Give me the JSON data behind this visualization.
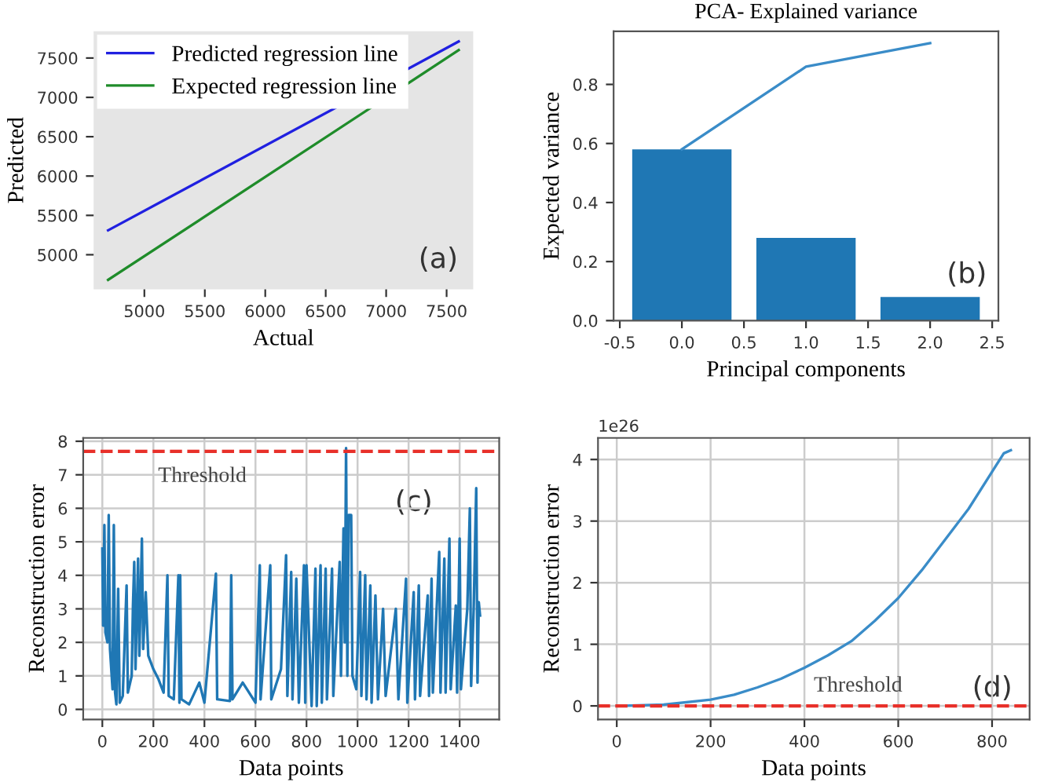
{
  "chart_data": [
    {
      "type": "line",
      "xlabel": "Actual",
      "ylabel": "Predicted",
      "xlim": [
        4580,
        7720
      ],
      "ylim": [
        4560,
        7840
      ],
      "xticks": [
        5000,
        5500,
        6000,
        6500,
        7000,
        7500
      ],
      "yticks": [
        5000,
        5500,
        6000,
        6500,
        7000,
        7500
      ],
      "grid": false,
      "legend": "top left",
      "annotations": [
        "(a)"
      ],
      "series": [
        {
          "name": "Predicted regression line",
          "color": "#2020e0",
          "x": [
            4700,
            7600
          ],
          "values": [
            5310,
            7710
          ]
        },
        {
          "name": "Expected regression line",
          "color": "#1f8c2a",
          "x": [
            4700,
            7600
          ],
          "values": [
            4680,
            7600
          ]
        }
      ]
    },
    {
      "type": "bar",
      "title": "PCA- Explained variance",
      "xlabel": "Principal components",
      "ylabel": "Expected variance",
      "xlim": [
        -0.55,
        2.55
      ],
      "ylim": [
        0,
        0.98
      ],
      "xticks": [
        -0.5,
        {
          "value": 0,
          "label": "0.0"
        },
        0.5,
        {
          "value": 1,
          "label": "1.0"
        },
        1.5,
        {
          "value": 2,
          "label": "2.0"
        },
        2.5
      ],
      "yticks": [
        {
          "value": 0,
          "label": "0.0"
        },
        0.2,
        0.4,
        0.6,
        0.8
      ],
      "grid": false,
      "annotations": [
        "(b)"
      ],
      "series": [
        {
          "type": "bar",
          "color": "#1f77b4",
          "x": [
            0,
            1,
            2
          ],
          "values": [
            0.58,
            0.28,
            0.08
          ]
        },
        {
          "type": "line",
          "color": "#3a8cc8",
          "x": [
            0,
            1,
            2
          ],
          "values": [
            0.58,
            0.86,
            0.94
          ]
        }
      ]
    },
    {
      "type": "line",
      "xlabel": "Data points",
      "ylabel": "Reconstruction error",
      "xlim": [
        -75,
        1555
      ],
      "ylim": [
        -0.3,
        8.1
      ],
      "xticks": [
        0,
        200,
        400,
        600,
        800,
        1000,
        1200,
        1400
      ],
      "yticks": [
        0,
        1,
        2,
        3,
        4,
        5,
        6,
        7,
        8
      ],
      "grid": true,
      "annotations": [
        "(c)"
      ],
      "ref_lines": [
        {
          "axis": "y",
          "value": 7.7,
          "label": "Threshold",
          "color": "#e8302a",
          "line_style": "dashed"
        }
      ],
      "series": [
        {
          "color": "#1f77b4",
          "x": [
            0,
            3,
            8,
            12,
            20,
            25,
            30,
            40,
            45,
            50,
            55,
            62,
            68,
            80,
            95,
            100,
            115,
            120,
            125,
            130,
            140,
            145,
            155,
            160,
            170,
            180,
            200,
            220,
            240,
            255,
            260,
            280,
            298,
            302,
            305,
            310,
            340,
            380,
            400,
            445,
            450,
            500,
            505,
            510,
            550,
            600,
            617,
            620,
            658,
            662,
            700,
            720,
            725,
            740,
            745,
            760,
            770,
            790,
            795,
            800,
            820,
            835,
            840,
            855,
            860,
            875,
            880,
            900,
            905,
            930,
            935,
            945,
            950,
            955,
            960,
            965,
            975,
            980,
            995,
            1010,
            1015,
            1030,
            1035,
            1050,
            1055,
            1070,
            1080,
            1100,
            1110,
            1150,
            1160,
            1190,
            1195,
            1220,
            1225,
            1240,
            1245,
            1275,
            1280,
            1290,
            1295,
            1320,
            1325,
            1340,
            1345,
            1360,
            1365,
            1385,
            1390,
            1400,
            1405,
            1430,
            1440,
            1445,
            1455,
            1465,
            1470,
            1475,
            1480
          ],
          "values": [
            4.8,
            2.5,
            5.5,
            2.3,
            2.0,
            5.8,
            1.8,
            0.6,
            5.5,
            0.5,
            0.15,
            3.6,
            0.2,
            0.4,
            3.7,
            0.5,
            1.0,
            3.1,
            4.4,
            1.2,
            4.5,
            1.6,
            5.1,
            1.8,
            3.5,
            1.6,
            1.2,
            0.9,
            0.5,
            4.0,
            0.4,
            0.3,
            4.0,
            0.2,
            4.0,
            0.3,
            0.15,
            0.8,
            0.2,
            4.05,
            0.3,
            0.25,
            4.0,
            0.3,
            0.8,
            0.2,
            4.3,
            0.3,
            4.3,
            0.3,
            1.2,
            4.6,
            0.4,
            4.1,
            0.3,
            3.9,
            0.2,
            4.3,
            0.2,
            4.3,
            0.1,
            4.2,
            0.1,
            4.3,
            0.2,
            4.2,
            0.3,
            4.2,
            0.4,
            4.4,
            1.0,
            5.4,
            2.0,
            7.8,
            1.0,
            5.8,
            5.8,
            1.0,
            0.6,
            4.1,
            0.4,
            4.0,
            0.3,
            3.7,
            0.2,
            3.4,
            0.3,
            3.0,
            0.4,
            3.0,
            0.3,
            3.9,
            0.2,
            3.5,
            0.3,
            3.7,
            0.4,
            3.4,
            0.4,
            3.9,
            0.5,
            4.7,
            0.5,
            4.5,
            0.5,
            5.1,
            0.6,
            3.1,
            0.5,
            5.1,
            0.6,
            3.0,
            6.0,
            0.7,
            3.0,
            6.6,
            0.8,
            3.2,
            2.8
          ]
        }
      ]
    },
    {
      "type": "line",
      "xlabel": "Data points",
      "ylabel": "Reconstruction error",
      "xlim": [
        -40,
        880
      ],
      "ylim": [
        -0.22,
        4.35
      ],
      "xticks": [
        0,
        200,
        400,
        600,
        800
      ],
      "yticks": [
        0,
        1,
        2,
        3,
        4
      ],
      "grid": true,
      "annotations": [
        "1e26",
        "(d)"
      ],
      "ref_lines": [
        {
          "axis": "y",
          "value": 0,
          "label": "Threshold",
          "color": "#e8302a",
          "line_style": "dashed"
        }
      ],
      "series": [
        {
          "color": "#3a8cc8",
          "x": [
            0,
            100,
            200,
            250,
            300,
            350,
            400,
            450,
            500,
            550,
            600,
            650,
            700,
            750,
            800,
            825,
            840
          ],
          "values": [
            0,
            0.02,
            0.1,
            0.18,
            0.3,
            0.44,
            0.62,
            0.82,
            1.05,
            1.38,
            1.75,
            2.2,
            2.7,
            3.2,
            3.8,
            4.1,
            4.15
          ]
        }
      ]
    }
  ]
}
